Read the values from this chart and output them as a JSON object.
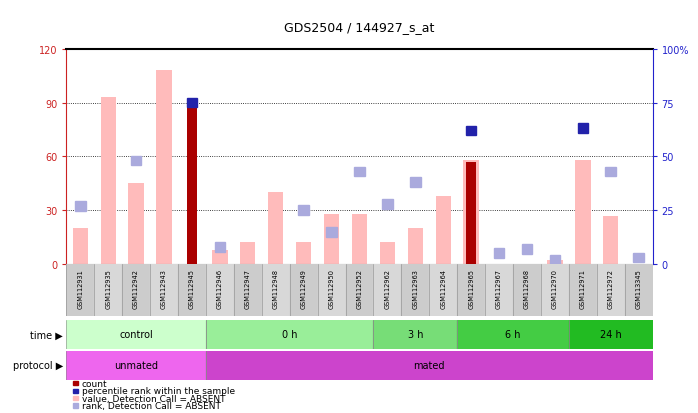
{
  "title": "GDS2504 / 144927_s_at",
  "samples": [
    "GSM112931",
    "GSM112935",
    "GSM112942",
    "GSM112943",
    "GSM112945",
    "GSM112946",
    "GSM112947",
    "GSM112948",
    "GSM112949",
    "GSM112950",
    "GSM112952",
    "GSM112962",
    "GSM112963",
    "GSM112964",
    "GSM112965",
    "GSM112967",
    "GSM112968",
    "GSM112970",
    "GSM112971",
    "GSM112972",
    "GSM113345"
  ],
  "pink_bars": [
    20,
    93,
    45,
    108,
    0,
    8,
    12,
    40,
    12,
    28,
    28,
    12,
    20,
    38,
    58,
    0,
    0,
    2,
    58,
    27,
    0
  ],
  "red_bars": [
    0,
    0,
    0,
    0,
    92,
    0,
    0,
    0,
    0,
    0,
    0,
    0,
    0,
    0,
    57,
    0,
    0,
    0,
    0,
    0,
    0
  ],
  "blue_solid": [
    null,
    null,
    null,
    null,
    75,
    null,
    null,
    null,
    null,
    null,
    null,
    null,
    null,
    null,
    62,
    null,
    null,
    null,
    63,
    null,
    null
  ],
  "blue_light": [
    27,
    null,
    48,
    null,
    null,
    8,
    null,
    null,
    25,
    15,
    43,
    28,
    38,
    null,
    null,
    5,
    7,
    2,
    null,
    43,
    3
  ],
  "ylim_left": [
    0,
    120
  ],
  "ylim_right": [
    0,
    100
  ],
  "yticks_left": [
    0,
    30,
    60,
    90,
    120
  ],
  "yticks_right": [
    0,
    25,
    50,
    75,
    100
  ],
  "ytick_labels_right": [
    "0",
    "25",
    "50",
    "75",
    "100%"
  ],
  "ytick_labels_left": [
    "0",
    "30",
    "60",
    "90",
    "120"
  ],
  "group_list": [
    [
      "control",
      "#ccffcc",
      0,
      4
    ],
    [
      "0 h",
      "#99ee99",
      5,
      10
    ],
    [
      "3 h",
      "#77dd77",
      11,
      13
    ],
    [
      "6 h",
      "#44cc44",
      14,
      17
    ],
    [
      "24 h",
      "#22bb22",
      18,
      20
    ]
  ],
  "protocol_list": [
    [
      "unmated",
      "#ee66ee",
      0,
      4
    ],
    [
      "mated",
      "#cc44cc",
      5,
      20
    ]
  ],
  "background_color": "#d8d8d8",
  "left_axis_color": "#cc2222",
  "right_axis_color": "#2222cc",
  "pink_bar_color": "#ffbbbb",
  "red_bar_color": "#aa0000",
  "blue_solid_color": "#2222aa",
  "blue_light_color": "#aaaadd"
}
